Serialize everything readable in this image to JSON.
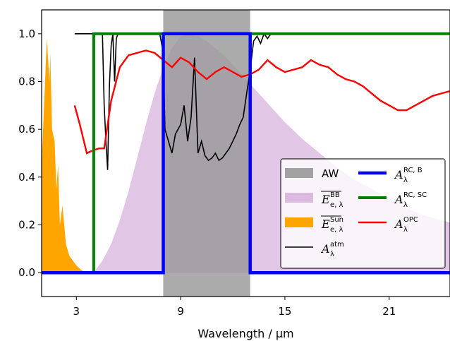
{
  "chart_data": {
    "type": "line",
    "xlabel": "Wavelength / µm",
    "ylabel": "",
    "xlim": [
      1,
      24.5
    ],
    "ylim": [
      -0.1,
      1.1
    ],
    "xticks": [
      3,
      9,
      15,
      21
    ],
    "yticks": [
      0.0,
      0.2,
      0.4,
      0.6,
      0.8,
      1.0
    ],
    "xtick_labels": [
      "3",
      "9",
      "15",
      "21"
    ],
    "ytick_labels": [
      "0.0",
      "0.2",
      "0.4",
      "0.6",
      "0.8",
      "1.0"
    ],
    "grid": false,
    "legend_position": "lower-right",
    "atmospheric_window": {
      "name": "AW",
      "x_range": [
        8,
        13
      ],
      "color": "#999999"
    },
    "series": [
      {
        "name": "A_λ^RC,B",
        "label_main": "A",
        "label_sub": "λ",
        "label_sup": "RC, B",
        "color": "#0000ff",
        "x": [
          1,
          8,
          8,
          13,
          13,
          24.5
        ],
        "y": [
          0,
          0,
          1,
          1,
          0,
          0
        ]
      },
      {
        "name": "A_λ^RC,SC",
        "label_main": "A",
        "label_sub": "λ",
        "label_sup": "RC, SC",
        "color": "#008000",
        "x": [
          1,
          4,
          4,
          24.5
        ],
        "y": [
          0,
          0,
          1,
          1
        ]
      },
      {
        "name": "A_λ^OPC",
        "label_main": "A",
        "label_sub": "λ",
        "label_sup": "OPC",
        "color": "#ff0000",
        "x": [
          2.9,
          3.2,
          3.6,
          3.9,
          4.3,
          4.6,
          5.0,
          5.5,
          6.0,
          6.5,
          7.0,
          7.5,
          8.0,
          8.5,
          9.0,
          9.5,
          10.0,
          10.5,
          11.0,
          11.5,
          12.0,
          12.5,
          13.0,
          13.5,
          14.0,
          14.5,
          15.0,
          15.5,
          16.0,
          16.5,
          17.0,
          17.5,
          18.0,
          18.5,
          19.0,
          19.5,
          20.0,
          20.5,
          21.0,
          21.5,
          22.0,
          22.5,
          23.0,
          23.5,
          24.0,
          24.5
        ],
        "y": [
          0.7,
          0.62,
          0.5,
          0.51,
          0.52,
          0.52,
          0.72,
          0.86,
          0.91,
          0.92,
          0.93,
          0.92,
          0.89,
          0.86,
          0.9,
          0.88,
          0.84,
          0.81,
          0.84,
          0.86,
          0.84,
          0.82,
          0.83,
          0.85,
          0.89,
          0.86,
          0.84,
          0.85,
          0.86,
          0.89,
          0.87,
          0.86,
          0.83,
          0.81,
          0.8,
          0.78,
          0.75,
          0.72,
          0.7,
          0.68,
          0.68,
          0.7,
          0.72,
          0.74,
          0.75,
          0.76
        ]
      },
      {
        "name": "A_λ^atm",
        "label_main": "A",
        "label_sub": "λ",
        "label_sup": "atm",
        "color": "#000000",
        "x": [
          2.9,
          3.5,
          4.0,
          4.5,
          4.6,
          4.7,
          4.8,
          4.9,
          5.0,
          5.1,
          5.2,
          5.3,
          5.4,
          5.6,
          6.0,
          7.0,
          7.8,
          8.0,
          8.1,
          8.3,
          8.5,
          8.7,
          9.0,
          9.2,
          9.4,
          9.6,
          9.8,
          10.0,
          10.2,
          10.4,
          10.6,
          10.8,
          11.0,
          11.2,
          11.4,
          11.6,
          11.8,
          12.0,
          12.2,
          12.4,
          12.6,
          12.8,
          13.0,
          13.2,
          13.4,
          13.6,
          13.8,
          14.0,
          14.2,
          24.5
        ],
        "y": [
          1.0,
          1.0,
          1.0,
          1.0,
          0.7,
          0.55,
          0.43,
          0.78,
          0.95,
          1.0,
          0.8,
          0.98,
          1.0,
          1.0,
          1.0,
          1.0,
          1.0,
          0.92,
          0.6,
          0.55,
          0.5,
          0.58,
          0.62,
          0.7,
          0.55,
          0.65,
          0.9,
          0.5,
          0.55,
          0.49,
          0.47,
          0.48,
          0.5,
          0.47,
          0.48,
          0.5,
          0.52,
          0.55,
          0.58,
          0.62,
          0.65,
          0.75,
          0.85,
          0.97,
          0.99,
          0.96,
          1.0,
          0.98,
          1.0,
          1.0
        ]
      },
      {
        "name": "E_e,λ^BB",
        "label_main": "E",
        "label_sub": "e, λ",
        "label_sup": "BB",
        "color": "#d8b3dc",
        "x": [
          4.0,
          4.5,
          5.0,
          5.5,
          6.0,
          6.5,
          7.0,
          7.5,
          8.0,
          8.5,
          9.0,
          9.5,
          10.0,
          10.5,
          11.0,
          11.5,
          12.0,
          12.5,
          13.0,
          14.0,
          15.0,
          16.0,
          17.0,
          18.0,
          19.0,
          20.0,
          21.0,
          22.0,
          23.0,
          24.0,
          24.5
        ],
        "y": [
          0.0,
          0.05,
          0.12,
          0.22,
          0.34,
          0.48,
          0.62,
          0.75,
          0.86,
          0.94,
          0.99,
          1.0,
          0.99,
          0.97,
          0.94,
          0.91,
          0.87,
          0.83,
          0.79,
          0.71,
          0.63,
          0.56,
          0.5,
          0.44,
          0.39,
          0.35,
          0.31,
          0.27,
          0.24,
          0.22,
          0.21
        ]
      },
      {
        "name": "E_e,λ^Sun",
        "label_main": "E",
        "label_sub": "e, λ",
        "label_sup": "Sun",
        "color": "#ffa500",
        "x": [
          1.0,
          1.3,
          1.45,
          1.5,
          1.6,
          1.75,
          1.85,
          1.95,
          2.05,
          2.2,
          2.4,
          2.6,
          2.8,
          3.0,
          3.3,
          3.6
        ],
        "y": [
          0.45,
          0.98,
          0.8,
          0.92,
          0.6,
          0.55,
          0.35,
          0.45,
          0.2,
          0.28,
          0.12,
          0.07,
          0.05,
          0.03,
          0.01,
          0.0
        ]
      }
    ]
  }
}
